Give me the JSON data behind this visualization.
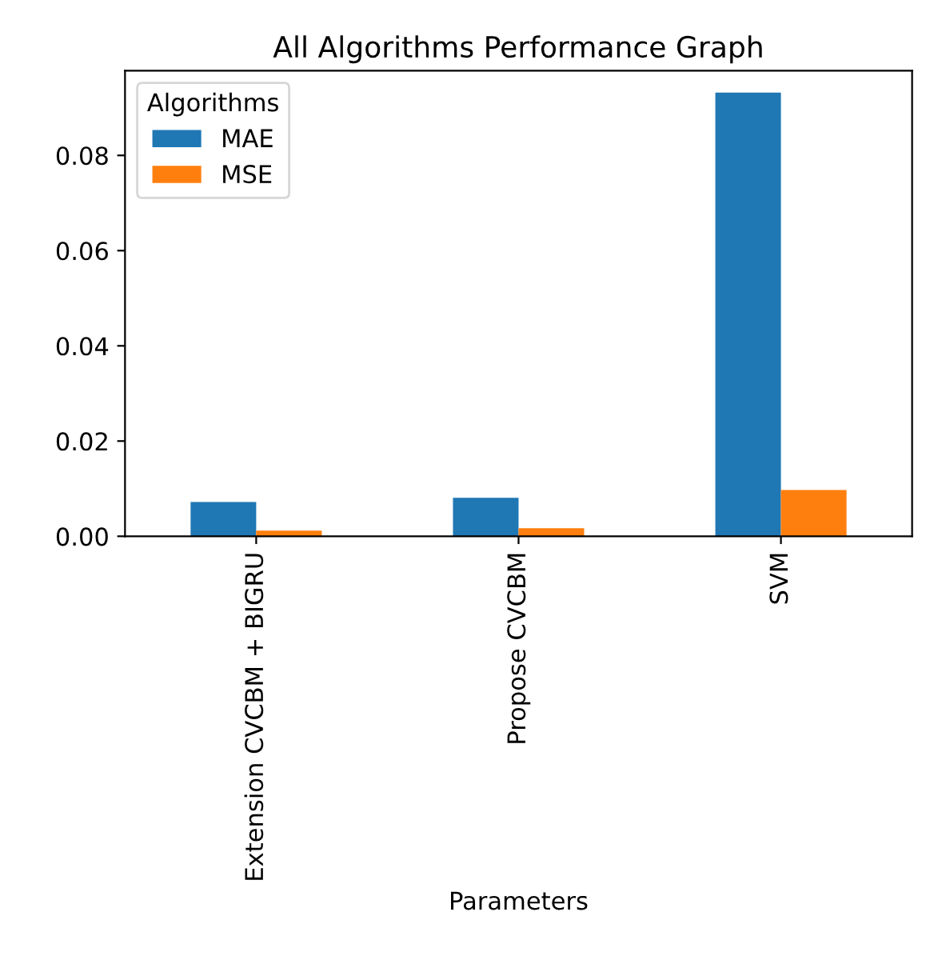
{
  "chart_data": {
    "type": "bar",
    "title": "All Algorithms Performance Graph",
    "xlabel": "Parameters",
    "legend_title": "Algorithms",
    "categories": [
      "Extension CVCBM + BIGRU",
      "Propose CVCBM",
      "SVM"
    ],
    "series": [
      {
        "name": "MAE",
        "color": "#1f77b4",
        "values": [
          0.0072,
          0.0081,
          0.0932
        ]
      },
      {
        "name": "MSE",
        "color": "#ff7f0e",
        "values": [
          0.0012,
          0.0017,
          0.0097
        ]
      }
    ],
    "ylim": [
      0,
      0.0978
    ],
    "yticks": [
      {
        "value": 0,
        "label": "0.00"
      },
      {
        "value": 0.02,
        "label": "0.02"
      },
      {
        "value": 0.04,
        "label": "0.04"
      },
      {
        "value": 0.06,
        "label": "0.06"
      },
      {
        "value": 0.08,
        "label": "0.08"
      }
    ],
    "legend": "top left",
    "grid": false
  }
}
